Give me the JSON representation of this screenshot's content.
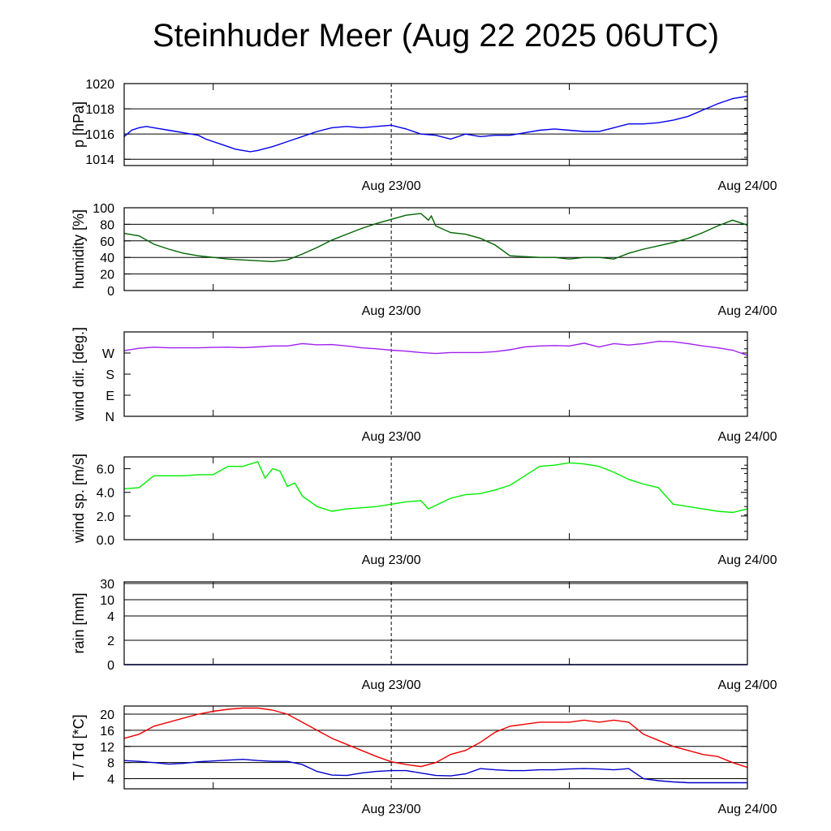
{
  "title": "Steinhuder Meer (Aug 22 2025 06UTC)",
  "colors": {
    "pressure": "#0000ee",
    "humidity": "#006400",
    "wind_dir": "#a020f0",
    "wind_speed": "#00ee00",
    "rain": "#0000cd",
    "temperature": "#ee0000",
    "dewpoint": "#0000cd"
  },
  "chart_data": [
    {
      "type": "line",
      "name": "pressure",
      "ylabel": "p [hPa]",
      "ylim": [
        1013.5,
        1020
      ],
      "yticks": [
        1014,
        1016,
        1018,
        1020
      ],
      "ytick_labels": [
        "1014",
        "1016",
        "1018",
        "1020"
      ],
      "grid": true,
      "xlim": [
        6,
        48
      ],
      "xticks": [
        24,
        48
      ],
      "xtick_labels": [
        "Aug 23/00",
        "Aug 24/00"
      ],
      "x": [
        6,
        6.5,
        7,
        7.5,
        8,
        8.5,
        9,
        9.5,
        10,
        10.5,
        11,
        11.5,
        12,
        12.5,
        13,
        13.5,
        14,
        14.5,
        15,
        16,
        17,
        18,
        19,
        20,
        21,
        22,
        23,
        24,
        25,
        26,
        27,
        28,
        29,
        30,
        31,
        32,
        33,
        34,
        35,
        36,
        37,
        38,
        39,
        40,
        41,
        42,
        43,
        44,
        45,
        46,
        47,
        48
      ],
      "series": [
        {
          "values": [
            1015.8,
            1016.3,
            1016.5,
            1016.6,
            1016.5,
            1016.4,
            1016.3,
            1016.2,
            1016.1,
            1016.0,
            1015.9,
            1015.6,
            1015.4,
            1015.2,
            1015.0,
            1014.8,
            1014.7,
            1014.6,
            1014.7,
            1015.0,
            1015.4,
            1015.8,
            1016.2,
            1016.5,
            1016.6,
            1016.5,
            1016.6,
            1016.7,
            1016.4,
            1016.0,
            1015.9,
            1015.6,
            1016.0,
            1015.8,
            1015.9,
            1015.9,
            1016.1,
            1016.3,
            1016.4,
            1016.3,
            1016.2,
            1016.2,
            1016.5,
            1016.8,
            1016.8,
            1016.9,
            1017.1,
            1017.4,
            1017.9,
            1018.4,
            1018.8,
            1019.0
          ]
        }
      ]
    },
    {
      "type": "line",
      "name": "humidity",
      "ylabel": "humidity [%]",
      "ylim": [
        0,
        100
      ],
      "yticks": [
        0,
        20,
        40,
        60,
        80,
        100
      ],
      "ytick_labels": [
        "0",
        "20",
        "40",
        "60",
        "80",
        "100"
      ],
      "grid": true,
      "xlim": [
        6,
        48
      ],
      "xticks": [
        24,
        48
      ],
      "xtick_labels": [
        "Aug 23/00",
        "Aug 24/00"
      ],
      "x": [
        6,
        7,
        8,
        9,
        10,
        11,
        12,
        13,
        14,
        15,
        16,
        17,
        18,
        19,
        20,
        21,
        22,
        23,
        24,
        25,
        26,
        26.5,
        26.7,
        27,
        28,
        29,
        30,
        31,
        32,
        33,
        34,
        35,
        36,
        37,
        38,
        39,
        40,
        41,
        42,
        43,
        44,
        45,
        46,
        47,
        48
      ],
      "series": [
        {
          "values": [
            69,
            66,
            56,
            50,
            45,
            42,
            40,
            38,
            37,
            36,
            35,
            37,
            44,
            52,
            61,
            68,
            75,
            81,
            86,
            91,
            93,
            85,
            90,
            78,
            70,
            68,
            63,
            55,
            42,
            41,
            40,
            40,
            38,
            40,
            40,
            38,
            45,
            50,
            54,
            58,
            63,
            70,
            78,
            85,
            79
          ]
        }
      ]
    },
    {
      "type": "line",
      "name": "wind direction",
      "ylabel": "wind dir. [deg.]",
      "ylim": [
        0,
        360
      ],
      "yticks": [
        0,
        90,
        180,
        270
      ],
      "ytick_labels": [
        "N",
        "E",
        "S",
        "W"
      ],
      "grid": false,
      "xlim": [
        6,
        48
      ],
      "xticks": [
        24,
        48
      ],
      "xtick_labels": [
        "Aug 23/00",
        "Aug 24/00"
      ],
      "x": [
        6,
        7,
        8,
        9,
        10,
        11,
        12,
        13,
        14,
        15,
        16,
        17,
        18,
        19,
        20,
        21,
        22,
        23,
        24,
        25,
        26,
        27,
        28,
        29,
        30,
        31,
        32,
        33,
        34,
        35,
        36,
        37,
        38,
        39,
        40,
        41,
        42,
        43,
        44,
        45,
        46,
        47,
        48
      ],
      "series": [
        {
          "values": [
            280,
            290,
            295,
            292,
            292,
            292,
            294,
            295,
            293,
            296,
            300,
            300,
            310,
            305,
            306,
            300,
            292,
            288,
            282,
            278,
            272,
            268,
            272,
            272,
            272,
            276,
            284,
            296,
            300,
            302,
            300,
            312,
            296,
            310,
            304,
            310,
            320,
            318,
            310,
            300,
            292,
            282,
            260
          ]
        }
      ]
    },
    {
      "type": "line",
      "name": "wind speed",
      "ylabel": "wind sp. [m/s]",
      "ylim": [
        0,
        7
      ],
      "yticks": [
        0,
        2,
        4,
        6
      ],
      "ytick_labels": [
        "0.0",
        "2.0",
        "4.0",
        "6.0"
      ],
      "grid": false,
      "xlim": [
        6,
        48
      ],
      "xticks": [
        24,
        48
      ],
      "xtick_labels": [
        "Aug 23/00",
        "Aug 24/00"
      ],
      "x": [
        6,
        7,
        8,
        9,
        10,
        11,
        12,
        13,
        14,
        15,
        15.5,
        16,
        16.5,
        17,
        17.5,
        18,
        19,
        20,
        21,
        22,
        23,
        24,
        25,
        26,
        26.5,
        27,
        28,
        29,
        30,
        31,
        32,
        33,
        34,
        35,
        36,
        37,
        38,
        39,
        40,
        41,
        42,
        43,
        44,
        45,
        46,
        47,
        48
      ],
      "series": [
        {
          "values": [
            4.3,
            4.4,
            5.4,
            5.4,
            5.4,
            5.5,
            5.5,
            6.2,
            6.2,
            6.6,
            5.2,
            6.0,
            5.8,
            4.5,
            4.8,
            3.7,
            2.8,
            2.4,
            2.6,
            2.7,
            2.8,
            3.0,
            3.2,
            3.3,
            2.6,
            2.9,
            3.5,
            3.8,
            3.9,
            4.2,
            4.6,
            5.4,
            6.2,
            6.3,
            6.5,
            6.4,
            6.2,
            5.7,
            5.1,
            4.7,
            4.4,
            3.0,
            2.8,
            2.6,
            2.4,
            2.3,
            2.6
          ]
        }
      ]
    },
    {
      "type": "line",
      "name": "rain",
      "ylabel": "rain [mm]",
      "scale": "nonlinear",
      "yticks": [
        0,
        2,
        4,
        10,
        30
      ],
      "ytick_labels": [
        "0",
        "2",
        "4",
        "10",
        "30"
      ],
      "grid": true,
      "xlim": [
        6,
        48
      ],
      "xticks": [
        24,
        48
      ],
      "xtick_labels": [
        "Aug 23/00",
        "Aug 24/00"
      ],
      "x": [
        6,
        36,
        48
      ],
      "series": [
        {
          "values": [
            0,
            0,
            0
          ]
        }
      ]
    },
    {
      "type": "line",
      "name": "temperature / dewpoint",
      "ylabel": "T / Td [*C]",
      "ylim": [
        1.5,
        22
      ],
      "yticks": [
        4,
        8,
        12,
        16,
        20
      ],
      "ytick_labels": [
        "4",
        "8",
        "12",
        "16",
        "20"
      ],
      "grid": true,
      "xlim": [
        6,
        48
      ],
      "xticks": [
        24,
        48
      ],
      "xtick_labels": [
        "Aug 23/00",
        "Aug 24/00"
      ],
      "x": [
        6,
        7,
        8,
        9,
        10,
        11,
        12,
        13,
        14,
        15,
        16,
        17,
        18,
        19,
        20,
        21,
        22,
        23,
        24,
        25,
        26,
        27,
        28,
        29,
        30,
        31,
        32,
        33,
        34,
        35,
        36,
        37,
        38,
        39,
        40,
        41,
        42,
        43,
        44,
        45,
        46,
        47,
        48
      ],
      "series": [
        {
          "values": [
            14,
            15,
            17,
            18,
            19,
            20,
            20.7,
            21.2,
            21.5,
            21.5,
            21,
            20,
            18,
            16,
            14,
            12.5,
            11,
            9.5,
            8.2,
            7.5,
            7.0,
            8.0,
            10,
            11,
            13,
            15.5,
            17,
            17.5,
            18,
            18,
            18,
            18.5,
            18,
            18.5,
            18,
            15,
            13.5,
            12,
            11,
            10,
            9.5,
            8,
            6.8
          ]
        },
        {
          "values": [
            8.5,
            8.3,
            8.0,
            7.6,
            7.8,
            8.2,
            8.4,
            8.6,
            8.8,
            8.5,
            8.3,
            8.3,
            7.5,
            5.8,
            4.9,
            4.8,
            5.4,
            5.8,
            6.0,
            6.0,
            5.4,
            4.8,
            4.7,
            5.2,
            6.5,
            6.2,
            6.0,
            6.0,
            6.2,
            6.2,
            6.4,
            6.5,
            6.4,
            6.2,
            6.5,
            4.0,
            3.5,
            3.2,
            3.0,
            3.0,
            3.0,
            3.0,
            3.0
          ]
        }
      ]
    }
  ]
}
